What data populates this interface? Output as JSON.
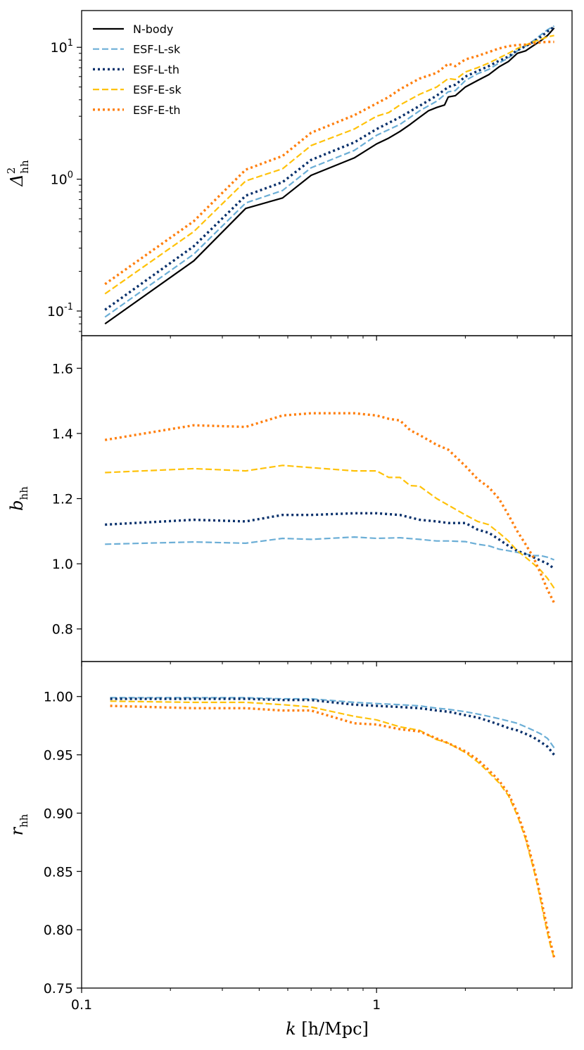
{
  "chart_data": {
    "type": "line",
    "x_label": {
      "var": "k",
      "unit": "[h/Mpc]"
    },
    "x_axis": {
      "scale": "log",
      "range": [
        0.1,
        4.6
      ],
      "ticks": [
        {
          "value": 0.1,
          "label": "0.1"
        },
        {
          "value": 1,
          "label": "1"
        }
      ]
    },
    "legend": {
      "placement": "top-left",
      "entries": [
        {
          "label": "N-body",
          "color": "#000000",
          "style": "solid"
        },
        {
          "label": "ESF-L-sk",
          "color": "#6baed6",
          "style": "dashed"
        },
        {
          "label": "ESF-L-th",
          "color": "#08306b",
          "style": "dotted"
        },
        {
          "label": "ESF-E-sk",
          "color": "#ffc20a",
          "style": "dashed"
        },
        {
          "label": "ESF-E-th",
          "color": "#ff7f0e",
          "style": "dotted"
        }
      ]
    },
    "panels": [
      {
        "name": "power",
        "y_label": {
          "sym": "Δ",
          "sup": "2",
          "sub": "hh"
        },
        "y_axis": {
          "scale": "log",
          "range": [
            0.065,
            19
          ],
          "ticks": [
            {
              "value": 0.1,
              "base": "10",
              "exp": "-1"
            },
            {
              "value": 1,
              "base": "10",
              "exp": "0"
            },
            {
              "value": 10,
              "base": "10",
              "exp": "1"
            }
          ]
        },
        "series": [
          {
            "name": "N-body",
            "x": [
              0.12,
              0.24,
              0.36,
              0.48,
              0.6,
              0.84,
              1.0,
              1.1,
              1.2,
              1.3,
              1.4,
              1.5,
              1.6,
              1.7,
              1.75,
              1.85,
              2.0,
              2.2,
              2.4,
              2.6,
              2.8,
              3.0,
              3.2,
              3.4,
              3.6,
              3.8,
              4.0
            ],
            "y": [
              0.08,
              0.24,
              0.6,
              0.72,
              1.07,
              1.45,
              1.85,
              2.05,
              2.3,
              2.6,
              2.95,
              3.3,
              3.5,
              3.65,
              4.2,
              4.3,
              5.0,
              5.6,
              6.2,
              7.1,
              7.8,
              9.0,
              9.4,
              10.3,
              11.2,
              12.3,
              14.0
            ]
          },
          {
            "name": "ESF-L-sk",
            "x": [
              0.12,
              0.24,
              0.36,
              0.48,
              0.6,
              0.84,
              1.0,
              1.2,
              1.4,
              1.6,
              1.75,
              1.85,
              2.0,
              2.2,
              2.4,
              2.6,
              2.8,
              3.0,
              3.2,
              3.4,
              3.6,
              3.8,
              4.0
            ],
            "y": [
              0.09,
              0.27,
              0.66,
              0.82,
              1.22,
              1.65,
              2.15,
              2.6,
              3.3,
              3.9,
              4.6,
              4.7,
              5.6,
              6.3,
              6.8,
              7.6,
              8.3,
              9.4,
              10.2,
              11.2,
              12.4,
              13.6,
              14.5
            ]
          },
          {
            "name": "ESF-L-th",
            "x": [
              0.12,
              0.24,
              0.36,
              0.48,
              0.6,
              0.84,
              1.0,
              1.2,
              1.4,
              1.6,
              1.75,
              1.85,
              2.0,
              2.2,
              2.4,
              2.6,
              2.8,
              3.0,
              3.2,
              3.4,
              3.6,
              3.8,
              4.0
            ],
            "y": [
              0.102,
              0.31,
              0.75,
              0.95,
              1.4,
              1.9,
              2.4,
              2.95,
              3.6,
              4.3,
              5.0,
              5.2,
              6.0,
              6.6,
              7.2,
              7.9,
              8.5,
              9.5,
              10.2,
              11.0,
              12.0,
              13.2,
              14.3
            ]
          },
          {
            "name": "ESF-E-sk",
            "x": [
              0.12,
              0.24,
              0.36,
              0.48,
              0.6,
              0.84,
              1.0,
              1.1,
              1.2,
              1.4,
              1.6,
              1.75,
              1.85,
              2.0,
              2.2,
              2.4,
              2.6,
              2.8,
              3.0,
              3.2,
              3.4,
              3.6,
              3.8,
              4.0
            ],
            "y": [
              0.135,
              0.4,
              0.97,
              1.2,
              1.8,
              2.4,
              3.0,
              3.2,
              3.65,
              4.4,
              5.0,
              5.8,
              5.7,
              6.5,
              7.0,
              7.6,
              8.3,
              9.0,
              9.8,
              10.4,
              11.0,
              11.5,
              12.0,
              12.3
            ]
          },
          {
            "name": "ESF-E-th",
            "x": [
              0.12,
              0.24,
              0.36,
              0.48,
              0.6,
              0.84,
              1.0,
              1.1,
              1.2,
              1.4,
              1.6,
              1.75,
              1.85,
              2.0,
              2.2,
              2.4,
              2.6,
              2.8,
              3.0,
              3.2,
              3.4,
              3.6,
              3.8,
              4.0
            ],
            "y": [
              0.16,
              0.48,
              1.18,
              1.5,
              2.25,
              3.05,
              3.75,
              4.2,
              4.8,
              5.8,
              6.4,
              7.5,
              7.2,
              8.1,
              8.6,
              9.2,
              9.8,
              10.2,
              10.4,
              10.5,
              10.7,
              10.9,
              11.0,
              11.0
            ]
          }
        ]
      },
      {
        "name": "bias",
        "y_label": {
          "sym": "b",
          "sub": "hh"
        },
        "y_axis": {
          "scale": "linear",
          "range": [
            0.7,
            1.7
          ],
          "ticks": [
            {
              "value": 0.8,
              "label": "0.8"
            },
            {
              "value": 1.0,
              "label": "1.0"
            },
            {
              "value": 1.2,
              "label": "1.2"
            },
            {
              "value": 1.4,
              "label": "1.4"
            },
            {
              "value": 1.6,
              "label": "1.6"
            }
          ]
        },
        "series": [
          {
            "name": "ESF-L-sk",
            "x": [
              0.12,
              0.24,
              0.36,
              0.48,
              0.6,
              0.84,
              1.0,
              1.2,
              1.4,
              1.6,
              1.75,
              2.0,
              2.2,
              2.4,
              2.6,
              2.8,
              3.0,
              3.2,
              3.4,
              3.6,
              3.8,
              4.0
            ],
            "y": [
              1.06,
              1.067,
              1.063,
              1.078,
              1.075,
              1.082,
              1.078,
              1.08,
              1.075,
              1.07,
              1.07,
              1.068,
              1.06,
              1.055,
              1.045,
              1.04,
              1.035,
              1.03,
              1.025,
              1.025,
              1.02,
              1.012
            ]
          },
          {
            "name": "ESF-L-th",
            "x": [
              0.12,
              0.24,
              0.36,
              0.48,
              0.6,
              0.84,
              1.0,
              1.2,
              1.4,
              1.6,
              1.75,
              2.0,
              2.2,
              2.4,
              2.6,
              2.8,
              3.0,
              3.2,
              3.4,
              3.6,
              3.8,
              4.0
            ],
            "y": [
              1.12,
              1.135,
              1.13,
              1.15,
              1.15,
              1.155,
              1.155,
              1.15,
              1.135,
              1.13,
              1.125,
              1.125,
              1.105,
              1.095,
              1.075,
              1.055,
              1.04,
              1.03,
              1.02,
              1.01,
              1.0,
              0.985
            ]
          },
          {
            "name": "ESF-E-sk",
            "x": [
              0.12,
              0.24,
              0.36,
              0.48,
              0.6,
              0.84,
              1.0,
              1.1,
              1.2,
              1.3,
              1.4,
              1.6,
              1.75,
              2.0,
              2.2,
              2.4,
              2.6,
              2.8,
              3.0,
              3.2,
              3.4,
              3.6,
              3.8,
              4.0
            ],
            "y": [
              1.28,
              1.292,
              1.285,
              1.302,
              1.295,
              1.285,
              1.285,
              1.265,
              1.265,
              1.24,
              1.238,
              1.2,
              1.18,
              1.15,
              1.13,
              1.12,
              1.095,
              1.07,
              1.04,
              1.02,
              1.0,
              0.98,
              0.955,
              0.925
            ]
          },
          {
            "name": "ESF-E-th",
            "x": [
              0.12,
              0.24,
              0.36,
              0.48,
              0.6,
              0.84,
              1.0,
              1.1,
              1.2,
              1.3,
              1.4,
              1.6,
              1.75,
              2.0,
              2.2,
              2.4,
              2.6,
              2.8,
              3.0,
              3.2,
              3.4,
              3.6,
              3.8,
              4.0
            ],
            "y": [
              1.38,
              1.425,
              1.42,
              1.455,
              1.462,
              1.462,
              1.455,
              1.445,
              1.44,
              1.41,
              1.395,
              1.365,
              1.35,
              1.3,
              1.26,
              1.235,
              1.2,
              1.15,
              1.1,
              1.06,
              1.02,
              0.97,
              0.92,
              0.88
            ]
          }
        ]
      },
      {
        "name": "correlation",
        "y_label": {
          "sym": "r",
          "sub": "hh"
        },
        "y_axis": {
          "scale": "linear",
          "range": [
            0.75,
            1.03
          ],
          "ticks": [
            {
              "value": 0.75,
              "label": "0.75"
            },
            {
              "value": 0.8,
              "label": "0.80"
            },
            {
              "value": 0.85,
              "label": "0.85"
            },
            {
              "value": 0.9,
              "label": "0.90"
            },
            {
              "value": 0.95,
              "label": "0.95"
            },
            {
              "value": 1.0,
              "label": "1.00"
            }
          ]
        },
        "series": [
          {
            "name": "ESF-L-sk",
            "x": [
              0.125,
              0.24,
              0.36,
              0.48,
              0.6,
              0.84,
              1.0,
              1.2,
              1.4,
              1.6,
              1.75,
              2.0,
              2.2,
              2.4,
              2.6,
              2.8,
              3.0,
              3.2,
              3.4,
              3.6,
              3.8,
              4.0
            ],
            "y": [
              0.999,
              0.999,
              0.999,
              0.998,
              0.998,
              0.995,
              0.994,
              0.993,
              0.992,
              0.99,
              0.989,
              0.987,
              0.985,
              0.983,
              0.981,
              0.979,
              0.977,
              0.974,
              0.971,
              0.968,
              0.964,
              0.956
            ]
          },
          {
            "name": "ESF-L-th",
            "x": [
              0.125,
              0.24,
              0.36,
              0.48,
              0.6,
              0.84,
              1.0,
              1.2,
              1.4,
              1.6,
              1.75,
              2.0,
              2.2,
              2.4,
              2.6,
              2.8,
              3.0,
              3.2,
              3.4,
              3.6,
              3.8,
              4.0
            ],
            "y": [
              0.998,
              0.998,
              0.998,
              0.997,
              0.997,
              0.993,
              0.992,
              0.991,
              0.99,
              0.988,
              0.987,
              0.984,
              0.982,
              0.979,
              0.976,
              0.973,
              0.971,
              0.968,
              0.965,
              0.961,
              0.957,
              0.95
            ]
          },
          {
            "name": "ESF-E-sk",
            "x": [
              0.125,
              0.24,
              0.36,
              0.48,
              0.6,
              0.84,
              1.0,
              1.2,
              1.4,
              1.6,
              1.75,
              2.0,
              2.2,
              2.4,
              2.6,
              2.8,
              3.0,
              3.1,
              3.2,
              3.3,
              3.4,
              3.5,
              3.6,
              3.7,
              3.8,
              3.9,
              4.0
            ],
            "y": [
              0.996,
              0.995,
              0.995,
              0.993,
              0.991,
              0.983,
              0.98,
              0.974,
              0.971,
              0.963,
              0.96,
              0.952,
              0.944,
              0.935,
              0.926,
              0.915,
              0.898,
              0.888,
              0.878,
              0.865,
              0.853,
              0.84,
              0.825,
              0.81,
              0.797,
              0.785,
              0.776
            ]
          },
          {
            "name": "ESF-E-th",
            "x": [
              0.125,
              0.24,
              0.36,
              0.48,
              0.6,
              0.84,
              1.0,
              1.2,
              1.4,
              1.6,
              1.75,
              2.0,
              2.2,
              2.4,
              2.6,
              2.8,
              3.0,
              3.1,
              3.2,
              3.3,
              3.4,
              3.5,
              3.6,
              3.7,
              3.8,
              3.9,
              4.0
            ],
            "y": [
              0.992,
              0.99,
              0.99,
              0.988,
              0.988,
              0.977,
              0.976,
              0.972,
              0.97,
              0.964,
              0.96,
              0.953,
              0.946,
              0.937,
              0.928,
              0.917,
              0.9,
              0.89,
              0.88,
              0.868,
              0.855,
              0.842,
              0.828,
              0.814,
              0.8,
              0.788,
              0.776
            ]
          }
        ]
      }
    ]
  }
}
